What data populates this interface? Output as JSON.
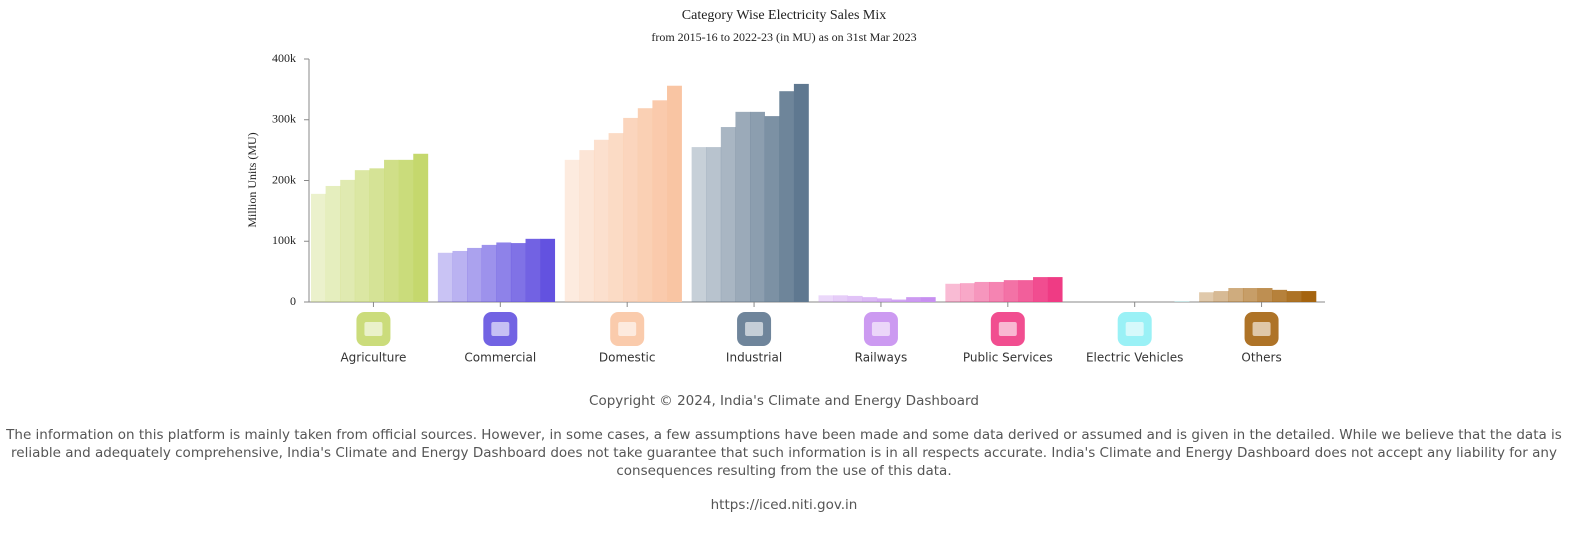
{
  "chart_data": {
    "type": "bar",
    "title": "Category Wise Electricity Sales Mix",
    "subtitle": "from 2015-16 to 2022-23 (in MU) as on 31st Mar 2023",
    "y_label": "Million Units (MU)",
    "categories": [
      "Agriculture",
      "Commercial",
      "Domestic",
      "Industrial",
      "Railways",
      "Public Services",
      "Electric Vehicles",
      "Others"
    ],
    "series": [
      {
        "color": "#c5d86d",
        "values": [
          178000,
          191000,
          201000,
          217000,
          220000,
          234000,
          234000,
          244000
        ]
      },
      {
        "color": "#6352e0",
        "values": [
          81000,
          84000,
          89000,
          94000,
          98000,
          97000,
          104000,
          104000
        ]
      },
      {
        "color": "#f9c5a3",
        "values": [
          234000,
          250000,
          267000,
          278000,
          303000,
          319000,
          332000,
          356000
        ]
      },
      {
        "color": "#5f7890",
        "values": [
          255000,
          255000,
          288000,
          313000,
          313000,
          306000,
          347000,
          359000
        ]
      },
      {
        "color": "#c78ff0",
        "values": [
          11000,
          11000,
          10000,
          8000,
          6000,
          4000,
          8000,
          8000
        ]
      },
      {
        "color": "#ef3b84",
        "values": [
          30000,
          31000,
          33000,
          33000,
          36000,
          36000,
          41000,
          41000
        ]
      },
      {
        "color": "#8ff0f5",
        "values": [
          0,
          0,
          0,
          0,
          0,
          0,
          0,
          500
        ]
      },
      {
        "color": "#a5640f",
        "values": [
          16000,
          18000,
          23000,
          23000,
          23000,
          20000,
          18000,
          18000
        ]
      }
    ],
    "ylim": [
      0,
      400000
    ],
    "yticks": [
      0,
      {
        "value": 100000,
        "label": "100k"
      },
      {
        "value": 200000,
        "label": "200k"
      },
      {
        "value": 300000,
        "label": "300k"
      },
      {
        "value": 400000,
        "label": "400k"
      }
    ]
  },
  "footer": {
    "copyright": "Copyright © 2024, India's Climate and Energy Dashboard",
    "disclaimer": "The information on this platform is mainly taken from official sources. However, in some cases, a few assumptions have been made and some data derived or assumed and is given in the detailed. While we believe that the data is reliable and adequately comprehensive, India's Climate and Energy Dashboard does not take guarantee that such information is in all respects accurate. India's Climate and Energy Dashboard does not accept any liability for any consequences resulting from the use of this data.",
    "url": "https://iced.niti.gov.in"
  }
}
